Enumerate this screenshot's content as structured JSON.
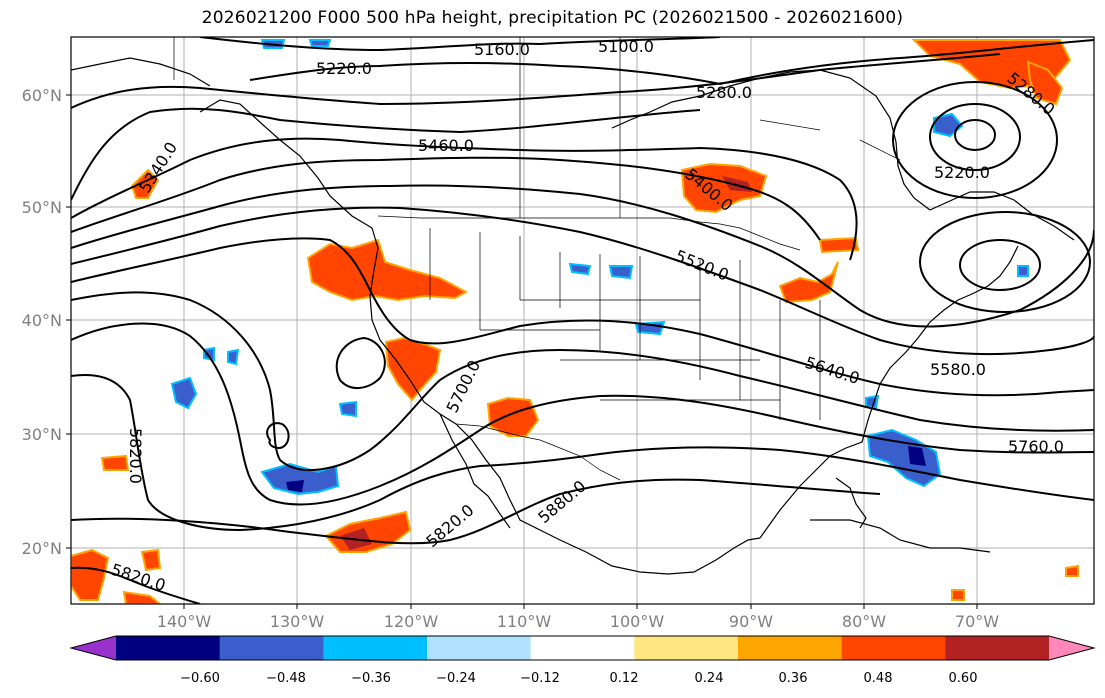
{
  "title": "2026021200 F000 500 hPa height, precipitation PC (2026021500 - 2026021600)",
  "map": {
    "lat_labels": [
      "60°N",
      "50°N",
      "40°N",
      "30°N",
      "20°N"
    ],
    "lon_labels": [
      "140°W",
      "130°W",
      "120°W",
      "110°W",
      "100°W",
      "90°W",
      "80°W",
      "70°W"
    ],
    "contour_labels": [
      "5160.0",
      "5100.0",
      "5220.0",
      "5280.0",
      "5340.0",
      "5460.0",
      "5400.0",
      "5220.0",
      "5520.0",
      "5640.0",
      "5580.0",
      "5760.0",
      "5820.0",
      "5700.0",
      "5820.0",
      "5880.0",
      "5820.0",
      "5280.0"
    ],
    "contour_color": "#000000",
    "coastline_color": "#000000",
    "grid_color": "#b0b0b0"
  },
  "colorbar": {
    "ticks": [
      "−0.60",
      "−0.48",
      "−0.36",
      "−0.24",
      "−0.12",
      "0.12",
      "0.24",
      "0.36",
      "0.48",
      "0.60"
    ],
    "colors": [
      "#9932cc",
      "#000080",
      "#3a5fcd",
      "#00bfff",
      "#b0e2ff",
      "#ffffff",
      "#ffe680",
      "#ffa500",
      "#ff4500",
      "#b22222",
      "#ff88bb"
    ]
  }
}
